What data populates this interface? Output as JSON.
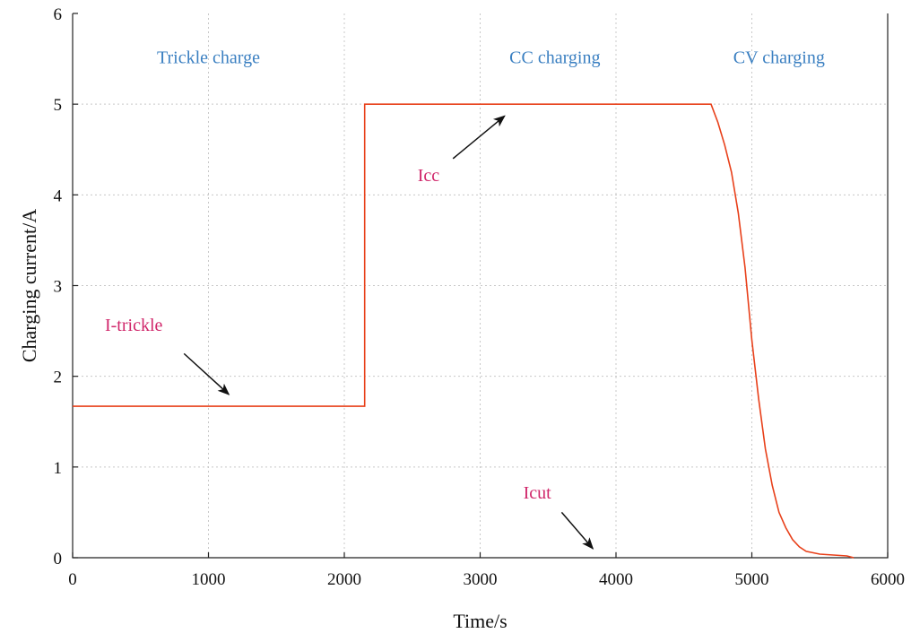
{
  "chart_data": {
    "type": "line",
    "xlabel": "Time/s",
    "ylabel": "Charging current/A",
    "xlim": [
      0,
      6000
    ],
    "ylim": [
      0,
      6
    ],
    "xticks": [
      0,
      1000,
      2000,
      3000,
      4000,
      5000,
      6000
    ],
    "yticks": [
      0,
      1,
      2,
      3,
      4,
      5,
      6
    ],
    "grid": true,
    "series": [
      {
        "color": "#e8401a",
        "x": [
          0,
          2150,
          2150,
          4700,
          4750,
          4800,
          4850,
          4900,
          4950,
          5000,
          5050,
          5100,
          5150,
          5200,
          5250,
          5300,
          5350,
          5400,
          5500,
          5600,
          5700,
          5750
        ],
        "y": [
          1.67,
          1.67,
          5.0,
          5.0,
          4.8,
          4.55,
          4.25,
          3.8,
          3.2,
          2.4,
          1.75,
          1.2,
          0.8,
          0.5,
          0.33,
          0.2,
          0.12,
          0.07,
          0.04,
          0.03,
          0.02,
          0.0
        ]
      }
    ],
    "regions": [
      {
        "label": "Trickle charge",
        "x": 1000,
        "y": 5.45
      },
      {
        "label": "CC charging",
        "x": 3550,
        "y": 5.45
      },
      {
        "label": "CV charging",
        "x": 5200,
        "y": 5.45
      }
    ],
    "annotations": [
      {
        "label": "I-trickle",
        "text_x": 450,
        "text_y": 2.5,
        "from": [
          820,
          2.25
        ],
        "to": [
          1150,
          1.8
        ]
      },
      {
        "label": "Icc",
        "text_x": 2620,
        "text_y": 4.15,
        "from": [
          2800,
          4.4
        ],
        "to": [
          3180,
          4.87
        ]
      },
      {
        "label": "Icut",
        "text_x": 3420,
        "text_y": 0.65,
        "from": [
          3600,
          0.5
        ],
        "to": [
          3830,
          0.1
        ]
      }
    ]
  }
}
